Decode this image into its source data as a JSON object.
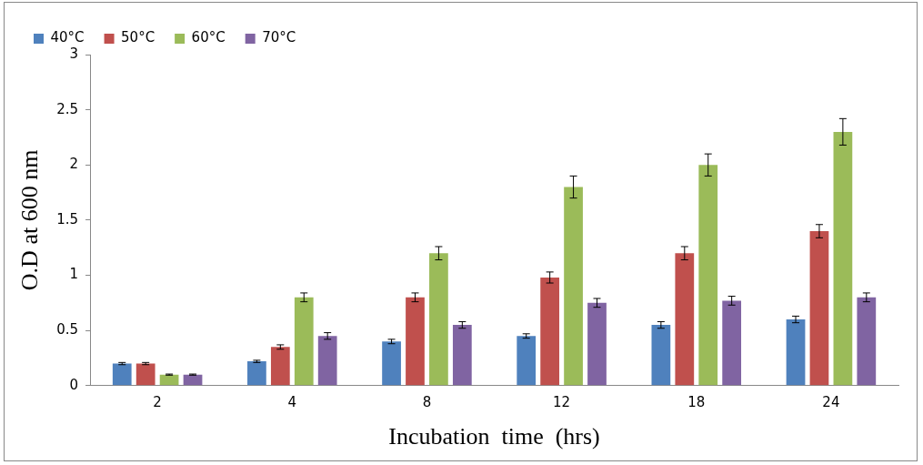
{
  "chart_data": {
    "type": "bar",
    "xlabel": "Incubation  time  (hrs)",
    "ylabel": "O.D at 600 nm",
    "categories": [
      "2",
      "4",
      "8",
      "12",
      "18",
      "24"
    ],
    "series": [
      {
        "name": "40°C",
        "color": "#4f81bd",
        "values": [
          0.2,
          0.22,
          0.4,
          0.45,
          0.55,
          0.6
        ],
        "errors": [
          0.01,
          0.01,
          0.02,
          0.02,
          0.03,
          0.03
        ]
      },
      {
        "name": "50°C",
        "color": "#c0504d",
        "values": [
          0.2,
          0.35,
          0.8,
          0.98,
          1.2,
          1.4
        ],
        "errors": [
          0.01,
          0.02,
          0.04,
          0.05,
          0.06,
          0.06
        ]
      },
      {
        "name": "60°C",
        "color": "#9bbb59",
        "values": [
          0.1,
          0.8,
          1.2,
          1.8,
          2.0,
          2.3
        ],
        "errors": [
          0.005,
          0.04,
          0.06,
          0.1,
          0.1,
          0.12
        ]
      },
      {
        "name": "70°C",
        "color": "#8064a2",
        "values": [
          0.1,
          0.45,
          0.55,
          0.75,
          0.77,
          0.8
        ],
        "errors": [
          0.005,
          0.03,
          0.03,
          0.04,
          0.04,
          0.04
        ]
      }
    ],
    "ylim": [
      0,
      3
    ],
    "yticks": [
      0,
      0.5,
      1,
      1.5,
      2,
      2.5,
      3
    ],
    "grid": false,
    "legend": "top left"
  }
}
